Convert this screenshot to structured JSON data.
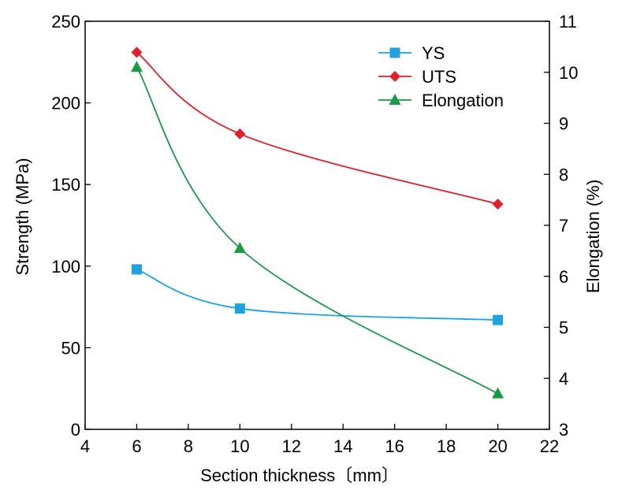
{
  "chart_data": {
    "type": "line",
    "title": "",
    "xlabel": "Section  thickness〔mm〕",
    "ylabel": "Strength (MPa)",
    "y2label": "Elongation (%)",
    "xlim": [
      4,
      22
    ],
    "ylim": [
      0,
      250
    ],
    "y2lim": [
      3,
      11
    ],
    "xticks": [
      4,
      6,
      8,
      10,
      12,
      14,
      16,
      18,
      20,
      22
    ],
    "yticks": [
      0,
      50,
      100,
      150,
      200,
      250
    ],
    "y2ticks": [
      3,
      4,
      5,
      6,
      7,
      8,
      9,
      10,
      11
    ],
    "legend_position": "top-right",
    "series": [
      {
        "name": "YS",
        "axis": "left",
        "marker": "square",
        "color": "#1fa3e0",
        "x": [
          6,
          10,
          20
        ],
        "values": [
          98,
          74,
          67
        ]
      },
      {
        "name": "UTS",
        "axis": "left",
        "marker": "diamond",
        "color": "#e0202a",
        "x": [
          6,
          10,
          20
        ],
        "values": [
          231,
          181,
          138
        ]
      },
      {
        "name": "Elongation",
        "axis": "right",
        "marker": "triangle",
        "color": "#1a9a44",
        "x": [
          6,
          10,
          20
        ],
        "values": [
          10.1,
          6.55,
          3.7
        ]
      }
    ]
  }
}
